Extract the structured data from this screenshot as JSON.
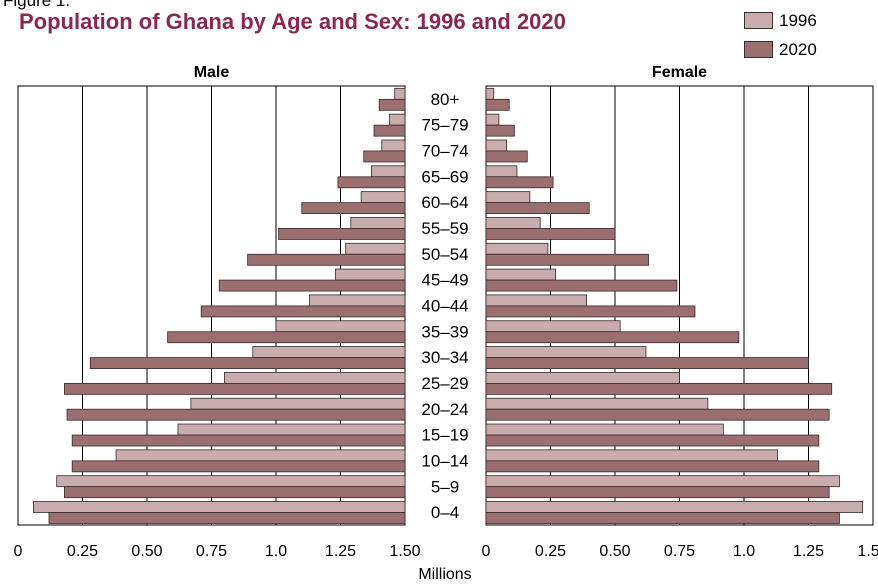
{
  "figure_label": "Figure 1.",
  "chart_data": {
    "type": "bar",
    "title": "Population of Ghana by Age and Sex:  1996 and 2020",
    "xlabel": "Millions",
    "panels": [
      {
        "name": "Male",
        "side": "left"
      },
      {
        "name": "Female",
        "side": "right"
      }
    ],
    "categories": [
      "0–4",
      "5–9",
      "10–14",
      "15–19",
      "20–24",
      "25–29",
      "30–34",
      "35–39",
      "40–44",
      "45–49",
      "50–54",
      "55–59",
      "60–64",
      "65–69",
      "70–74",
      "75–79",
      "80+"
    ],
    "xlim": [
      0,
      1.5
    ],
    "x_ticks": [
      0,
      0.25,
      0.5,
      0.75,
      1.0,
      1.25,
      1.5
    ],
    "male_tick_labels": [
      "1.50",
      "1.25",
      "1.0",
      "0.75",
      "0.50",
      "0.25",
      "0"
    ],
    "female_tick_labels": [
      "0",
      "0.25",
      "0.50",
      "0.75",
      "1.0",
      "1.25",
      "1.50"
    ],
    "grid": true,
    "legend_position": "top-right",
    "series": [
      {
        "name": "1996",
        "color": "#c8acae",
        "male": [
          1.44,
          1.35,
          1.12,
          0.88,
          0.83,
          0.7,
          0.59,
          0.5,
          0.37,
          0.27,
          0.23,
          0.21,
          0.17,
          0.13,
          0.09,
          0.06,
          0.04
        ],
        "female": [
          1.46,
          1.37,
          1.13,
          0.92,
          0.86,
          0.75,
          0.62,
          0.52,
          0.39,
          0.27,
          0.24,
          0.21,
          0.17,
          0.12,
          0.08,
          0.05,
          0.03
        ]
      },
      {
        "name": "2020",
        "color": "#9b6f70",
        "male": [
          1.38,
          1.32,
          1.29,
          1.29,
          1.31,
          1.32,
          1.22,
          0.92,
          0.79,
          0.72,
          0.61,
          0.49,
          0.4,
          0.26,
          0.16,
          0.12,
          0.1
        ],
        "female": [
          1.37,
          1.33,
          1.29,
          1.29,
          1.33,
          1.34,
          1.25,
          0.98,
          0.81,
          0.74,
          0.63,
          0.5,
          0.4,
          0.26,
          0.16,
          0.11,
          0.09
        ]
      }
    ]
  }
}
